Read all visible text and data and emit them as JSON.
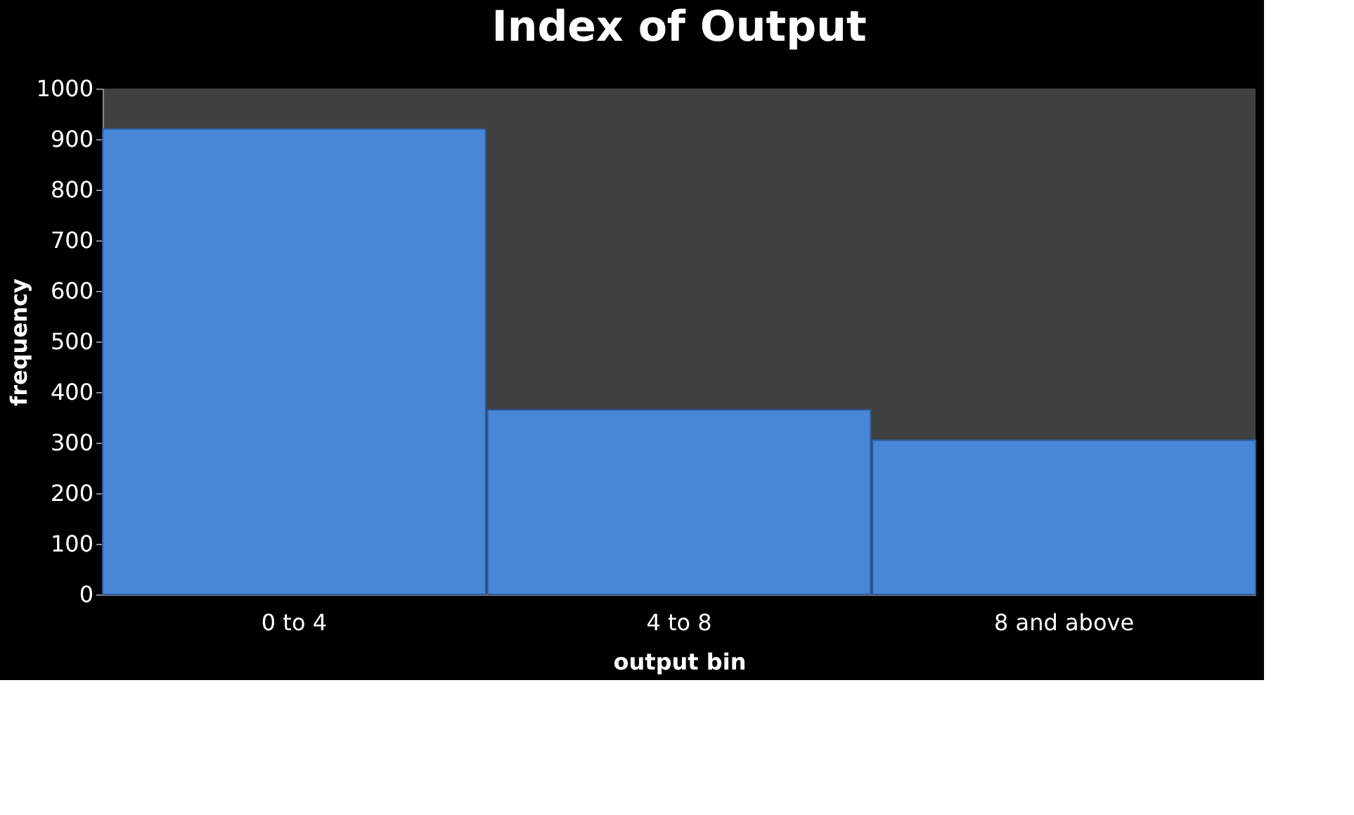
{
  "chart_data": {
    "type": "bar",
    "title": "Index of Output",
    "xlabel": "output bin",
    "ylabel": "frequency",
    "categories": [
      "0 to 4",
      "4 to 8",
      "8 and above"
    ],
    "values": [
      920,
      365,
      305
    ],
    "color": "#4a86d6",
    "ylim": [
      0,
      1000
    ],
    "yticks": [
      0,
      100,
      200,
      300,
      400,
      500,
      600,
      700,
      800,
      900,
      1000
    ],
    "grid": false
  }
}
